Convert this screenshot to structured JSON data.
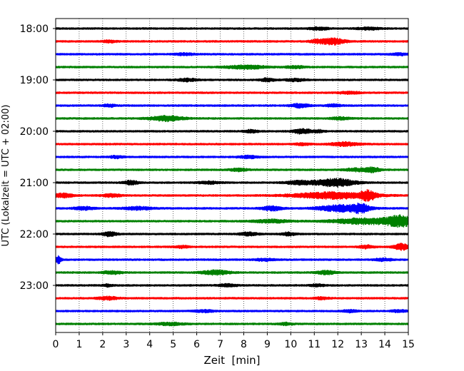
{
  "chart_data": {
    "type": "line",
    "title": "",
    "xlabel": "Zeit  [min]",
    "ylabel": "UTC (Lokalzeit = UTC + 02:00)",
    "xlim": [
      0,
      15
    ],
    "x_ticks": [
      "0",
      "1",
      "2",
      "3",
      "4",
      "5",
      "6",
      "7",
      "8",
      "9",
      "10",
      "11",
      "12",
      "13",
      "14",
      "15"
    ],
    "y_ticks": [
      "18:00",
      "19:00",
      "20:00",
      "21:00",
      "22:00",
      "23:00"
    ],
    "grid": "vertical dotted lines at each minute",
    "legend": "none",
    "trace_interval_min": 15,
    "color_cycle": [
      "#000000",
      "#ff0000",
      "#0000ff",
      "#008000"
    ],
    "series": [
      {
        "start": "18:00",
        "color": "#000000",
        "bursts": [
          [
            11.2,
            0.4,
            1.6
          ],
          [
            13.3,
            0.5,
            1.5
          ]
        ]
      },
      {
        "start": "18:15",
        "color": "#ff0000",
        "bursts": [
          [
            2.3,
            0.3,
            1.4
          ],
          [
            11.8,
            0.5,
            4.2
          ],
          [
            11.1,
            0.3,
            2.0
          ]
        ]
      },
      {
        "start": "18:30",
        "color": "#0000ff",
        "bursts": [
          [
            5.5,
            0.4,
            1.3
          ],
          [
            14.6,
            0.3,
            1.5
          ]
        ]
      },
      {
        "start": "18:45",
        "color": "#008000",
        "bursts": [
          [
            8.1,
            0.8,
            2.4
          ],
          [
            10.2,
            0.4,
            1.5
          ]
        ]
      },
      {
        "start": "19:00",
        "color": "#000000",
        "bursts": [
          [
            5.6,
            0.4,
            1.8
          ],
          [
            9.0,
            0.3,
            2.0
          ],
          [
            10.2,
            0.4,
            1.6
          ]
        ]
      },
      {
        "start": "19:15",
        "color": "#ff0000",
        "bursts": [
          [
            12.5,
            0.5,
            1.2
          ]
        ]
      },
      {
        "start": "19:30",
        "color": "#0000ff",
        "bursts": [
          [
            2.3,
            0.3,
            1.5
          ],
          [
            10.4,
            0.4,
            2.4
          ],
          [
            11.8,
            0.3,
            1.6
          ]
        ]
      },
      {
        "start": "19:45",
        "color": "#008000",
        "bursts": [
          [
            4.7,
            0.7,
            3.5
          ],
          [
            12.1,
            0.4,
            1.6
          ]
        ]
      },
      {
        "start": "20:00",
        "color": "#000000",
        "bursts": [
          [
            8.3,
            0.3,
            1.6
          ],
          [
            10.5,
            0.4,
            3.2
          ],
          [
            11.2,
            0.2,
            1.5
          ]
        ]
      },
      {
        "start": "20:15",
        "color": "#ff0000",
        "bursts": [
          [
            10.5,
            0.3,
            1.4
          ],
          [
            12.3,
            0.6,
            2.4
          ]
        ]
      },
      {
        "start": "20:30",
        "color": "#0000ff",
        "bursts": [
          [
            2.6,
            0.3,
            1.5
          ],
          [
            8.2,
            0.4,
            1.6
          ]
        ]
      },
      {
        "start": "20:45",
        "color": "#008000",
        "bursts": [
          [
            7.8,
            0.4,
            1.6
          ],
          [
            12.8,
            0.5,
            2.0
          ],
          [
            13.5,
            0.3,
            3.0
          ]
        ]
      },
      {
        "start": "21:00",
        "color": "#000000",
        "bursts": [
          [
            3.2,
            0.3,
            2.6
          ],
          [
            6.5,
            0.5,
            1.5
          ],
          [
            10.4,
            0.6,
            2.5
          ],
          [
            11.9,
            0.8,
            5.5
          ]
        ]
      },
      {
        "start": "21:15",
        "color": "#ff0000",
        "bursts": [
          [
            0.3,
            0.4,
            2.8
          ],
          [
            2.4,
            0.4,
            2.0
          ],
          [
            11.8,
            1.6,
            4.5
          ],
          [
            13.3,
            0.3,
            5.5
          ]
        ]
      },
      {
        "start": "21:30",
        "color": "#0000ff",
        "bursts": [
          [
            1.2,
            0.4,
            2.0
          ],
          [
            3.5,
            0.6,
            2.0
          ],
          [
            9.2,
            0.4,
            3.0
          ],
          [
            12.2,
            1.0,
            4.5
          ],
          [
            13.0,
            0.3,
            4.5
          ]
        ]
      },
      {
        "start": "21:45",
        "color": "#008000",
        "bursts": [
          [
            9.2,
            0.8,
            2.0
          ],
          [
            13.2,
            1.4,
            4.0
          ],
          [
            14.7,
            0.6,
            6.5
          ]
        ]
      },
      {
        "start": "22:00",
        "color": "#000000",
        "bursts": [
          [
            2.3,
            0.3,
            3.0
          ],
          [
            8.2,
            0.4,
            2.0
          ],
          [
            9.9,
            0.3,
            2.0
          ]
        ]
      },
      {
        "start": "22:15",
        "color": "#ff0000",
        "bursts": [
          [
            5.4,
            0.3,
            1.5
          ],
          [
            13.2,
            0.3,
            2.0
          ],
          [
            14.7,
            0.3,
            4.5
          ]
        ]
      },
      {
        "start": "22:30",
        "color": "#0000ff",
        "bursts": [
          [
            0.12,
            0.12,
            5.0
          ],
          [
            8.9,
            0.4,
            1.5
          ],
          [
            13.9,
            0.4,
            1.6
          ]
        ]
      },
      {
        "start": "22:45",
        "color": "#008000",
        "bursts": [
          [
            2.4,
            0.4,
            2.0
          ],
          [
            6.8,
            0.6,
            2.8
          ],
          [
            11.5,
            0.4,
            2.4
          ]
        ]
      },
      {
        "start": "23:00",
        "color": "#000000",
        "bursts": [
          [
            2.2,
            0.2,
            1.4
          ],
          [
            7.3,
            0.4,
            1.5
          ],
          [
            11.1,
            0.3,
            1.3
          ]
        ]
      },
      {
        "start": "23:15",
        "color": "#ff0000",
        "bursts": [
          [
            2.2,
            0.4,
            2.0
          ],
          [
            11.3,
            0.3,
            1.4
          ]
        ]
      },
      {
        "start": "23:30",
        "color": "#0000ff",
        "bursts": [
          [
            6.3,
            0.4,
            1.5
          ],
          [
            12.5,
            0.3,
            1.6
          ],
          [
            14.6,
            0.3,
            1.5
          ]
        ]
      },
      {
        "start": "23:45",
        "color": "#008000",
        "bursts": [
          [
            4.9,
            0.6,
            1.6
          ],
          [
            9.8,
            0.3,
            1.4
          ]
        ]
      }
    ]
  }
}
